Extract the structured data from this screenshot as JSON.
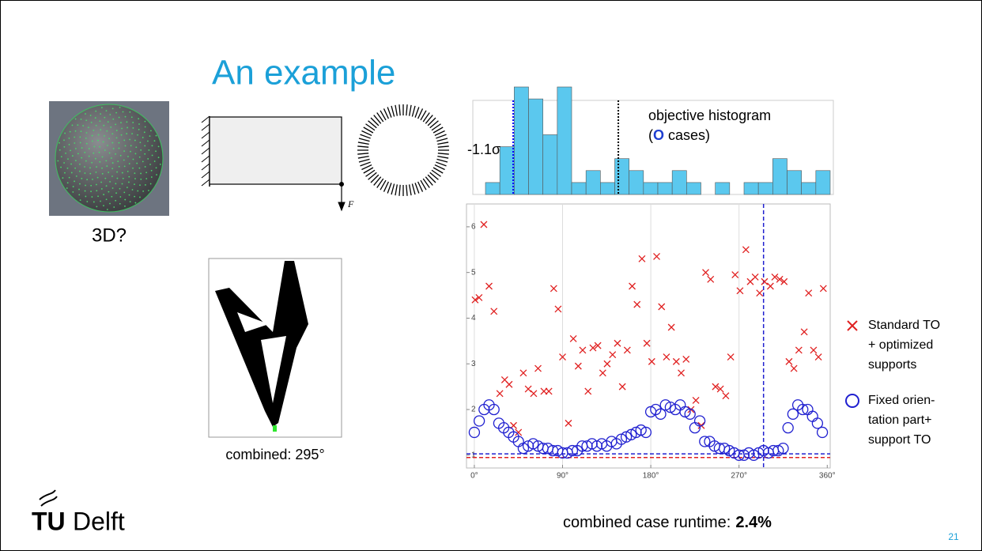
{
  "slide": {
    "title": "An example",
    "sphere_label": "3D?",
    "combined_caption": "combined: 295°",
    "runtime_label": "combined case runtime:",
    "runtime_value": "2.4%",
    "page_number": "21",
    "logo": {
      "tu": "TU",
      "delft": "Delft"
    }
  },
  "beam": {
    "force_label": "F"
  },
  "histogram": {
    "type": "histogram",
    "title_line1": "objective histogram",
    "title_line2": [
      "(",
      "O",
      "cases)"
    ],
    "sigma_label": "-1.1σ",
    "color": "#5bc8ee",
    "counts": [
      1,
      4,
      9,
      8,
      5,
      9,
      1,
      2,
      1,
      3,
      2,
      1,
      1,
      2,
      1,
      0,
      1,
      0,
      1,
      1,
      3,
      2,
      1,
      2
    ],
    "markers": [
      {
        "position": 1.93,
        "color": "#0000ff"
      },
      {
        "position": 9.25,
        "color": "#000000"
      }
    ]
  },
  "chart_data": {
    "type": "scatter",
    "xlim": [
      -8,
      363
    ],
    "ylim": [
      0.72,
      6.5
    ],
    "xticks": [
      {
        "value": 0,
        "label": "0°"
      },
      {
        "value": 90,
        "label": "90°"
      },
      {
        "value": 180,
        "label": "180°"
      },
      {
        "value": 270,
        "label": "270°"
      },
      {
        "value": 360,
        "label": "360°"
      }
    ],
    "yticks": [
      1,
      2,
      3,
      4,
      5,
      6
    ],
    "grid": true,
    "series": [
      {
        "legend": [
          "Standard TO",
          "+ optimized",
          "supports"
        ],
        "color": "#e02020",
        "marker": "x",
        "x": [
          0.8,
          4.8,
          9.7,
          15,
          20,
          26,
          31,
          35.5,
          40,
          45,
          50,
          55,
          60.5,
          65,
          71,
          76,
          81,
          85.5,
          90,
          96,
          101,
          106,
          110.5,
          116,
          121,
          126,
          131,
          135.5,
          141,
          146,
          151,
          156,
          161,
          166,
          171,
          176,
          181,
          186,
          191,
          196,
          201,
          206,
          211,
          216,
          221,
          226,
          231.5,
          236,
          241,
          246,
          251,
          256.5,
          261.5,
          266,
          271,
          277,
          281.5,
          286.5,
          291,
          296,
          302,
          306.5,
          311.5,
          316,
          321,
          326,
          331,
          336.5,
          341,
          346,
          351,
          356
        ],
        "values": [
          4.4,
          4.45,
          6.05,
          4.7,
          4.15,
          2.35,
          2.65,
          2.55,
          1.65,
          1.5,
          2.8,
          2.45,
          2.35,
          2.9,
          2.4,
          2.4,
          4.65,
          4.2,
          3.15,
          1.7,
          3.55,
          2.95,
          3.3,
          2.4,
          3.35,
          3.4,
          2.8,
          3.0,
          3.2,
          3.45,
          2.5,
          3.3,
          4.7,
          4.3,
          5.3,
          3.45,
          3.05,
          5.35,
          4.25,
          3.15,
          3.8,
          3.05,
          2.8,
          3.1,
          2.0,
          2.2,
          1.65,
          5.0,
          4.85,
          2.5,
          2.45,
          2.3,
          3.15,
          4.95,
          4.6,
          5.5,
          4.8,
          4.9,
          4.55,
          4.8,
          4.7,
          4.9,
          4.85,
          4.8,
          3.05,
          2.9,
          3.3,
          3.7,
          4.55,
          3.3,
          3.15,
          4.65
        ]
      },
      {
        "legend": [
          "Fixed orien-",
          "tation part+",
          "support TO"
        ],
        "color": "#2020d0",
        "marker": "o",
        "x": [
          0,
          5,
          10,
          15,
          20,
          25,
          30,
          35,
          40,
          45,
          50,
          55,
          60,
          65,
          70,
          75,
          80,
          85,
          90,
          95,
          100,
          105,
          110,
          115,
          120,
          125,
          130,
          135,
          140,
          145,
          150,
          155,
          160,
          165,
          170,
          175,
          180,
          185,
          190,
          195,
          200,
          205,
          210,
          215,
          220,
          225,
          230,
          235,
          240,
          245,
          250,
          255,
          260,
          265,
          270,
          275,
          280,
          285,
          290,
          295,
          300,
          305,
          310,
          315,
          320,
          325,
          330,
          335,
          340,
          345,
          350,
          355
        ],
        "values": [
          1.5,
          1.75,
          2.0,
          2.1,
          2.0,
          1.7,
          1.6,
          1.5,
          1.4,
          1.3,
          1.15,
          1.2,
          1.25,
          1.2,
          1.15,
          1.15,
          1.1,
          1.1,
          1.05,
          1.05,
          1.1,
          1.1,
          1.2,
          1.2,
          1.25,
          1.2,
          1.25,
          1.2,
          1.3,
          1.25,
          1.35,
          1.4,
          1.45,
          1.5,
          1.55,
          1.5,
          1.95,
          2.0,
          1.9,
          2.1,
          2.05,
          2.0,
          2.1,
          1.95,
          1.9,
          1.6,
          1.75,
          1.3,
          1.3,
          1.2,
          1.15,
          1.15,
          1.1,
          1.05,
          1.0,
          1.0,
          1.05,
          1.0,
          1.05,
          1.1,
          1.05,
          1.1,
          1.1,
          1.15,
          1.6,
          1.9,
          2.1,
          2.0,
          2.0,
          1.85,
          1.7,
          1.5
        ]
      }
    ],
    "hlines": [
      {
        "value": 1.03,
        "color": "#2020d0"
      },
      {
        "value": 0.95,
        "color": "#e02020"
      }
    ],
    "vlines": [
      {
        "value": 295,
        "color": "#2020d0"
      }
    ]
  }
}
